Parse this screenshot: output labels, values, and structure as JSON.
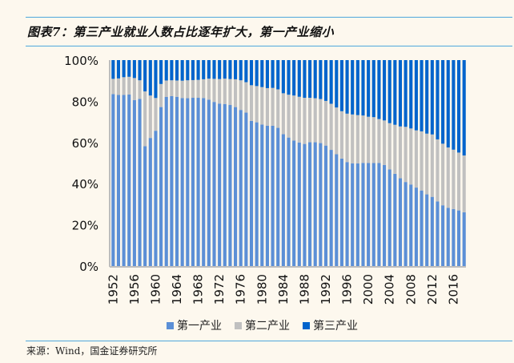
{
  "header": {
    "title": "图表7：第三产业就业人数占比逐年扩大，第一产业缩小"
  },
  "footer": {
    "source": "来源：Wind，国金证券研究所"
  },
  "colors": {
    "primary": "#5b8fd6",
    "secondary": "#c0c0c0",
    "tertiary": "#0064cc",
    "rule": "#4fa8dc",
    "background": "#fdf8ee"
  },
  "chart_data": {
    "type": "bar",
    "stacked": true,
    "percent": true,
    "title": "图表7：第三产业就业人数占比逐年扩大，第一产业缩小",
    "xlabel": "",
    "ylabel": "",
    "ylim": [
      0,
      100
    ],
    "yticks": [
      "0%",
      "20%",
      "40%",
      "60%",
      "80%",
      "100%"
    ],
    "xtick_labels": [
      "1952",
      "1956",
      "1960",
      "1964",
      "1968",
      "1972",
      "1976",
      "1980",
      "1984",
      "1988",
      "1992",
      "1996",
      "2000",
      "2004",
      "2008",
      "2012",
      "2016"
    ],
    "legend": {
      "position": "bottom",
      "entries": [
        "第一产业",
        "第二产业",
        "第三产业"
      ]
    },
    "grid": false,
    "categories": [
      "1952",
      "1953",
      "1954",
      "1955",
      "1956",
      "1957",
      "1958",
      "1959",
      "1960",
      "1961",
      "1962",
      "1963",
      "1964",
      "1965",
      "1966",
      "1967",
      "1968",
      "1969",
      "1970",
      "1971",
      "1972",
      "1973",
      "1974",
      "1975",
      "1976",
      "1977",
      "1978",
      "1979",
      "1980",
      "1981",
      "1982",
      "1983",
      "1984",
      "1985",
      "1986",
      "1987",
      "1988",
      "1989",
      "1990",
      "1991",
      "1992",
      "1993",
      "1994",
      "1995",
      "1996",
      "1997",
      "1998",
      "1999",
      "2000",
      "2001",
      "2002",
      "2003",
      "2004",
      "2005",
      "2006",
      "2007",
      "2008",
      "2009",
      "2010",
      "2011",
      "2012",
      "2013",
      "2014",
      "2015",
      "2016",
      "2017",
      "2018"
    ],
    "series": [
      {
        "name": "第一产业",
        "values": [
          83.5,
          83.1,
          83.1,
          83.3,
          80.6,
          81.2,
          58.2,
          62.2,
          65.7,
          77.2,
          82.1,
          82.5,
          82.2,
          81.6,
          81.5,
          81.7,
          81.7,
          81.6,
          80.8,
          79.7,
          78.9,
          78.7,
          78.2,
          77.2,
          75.8,
          74.5,
          70.5,
          69.8,
          68.7,
          68.1,
          68.1,
          67.1,
          64.0,
          62.4,
          60.9,
          60.0,
          59.3,
          60.1,
          60.1,
          59.7,
          58.5,
          56.4,
          54.3,
          52.2,
          50.5,
          49.9,
          49.8,
          50.1,
          50.0,
          50.0,
          50.0,
          49.1,
          46.9,
          44.8,
          42.6,
          40.8,
          39.6,
          38.1,
          36.7,
          34.8,
          33.6,
          31.4,
          29.5,
          28.3,
          27.7,
          27.0,
          26.1
        ]
      },
      {
        "name": "第二产业",
        "values": [
          7.4,
          8.0,
          8.6,
          8.6,
          10.7,
          9.0,
          26.6,
          20.6,
          15.9,
          11.2,
          8.0,
          7.7,
          7.9,
          8.4,
          8.7,
          8.6,
          8.7,
          9.1,
          10.2,
          11.2,
          11.9,
          12.3,
          12.6,
          13.5,
          14.4,
          14.8,
          17.3,
          17.6,
          18.2,
          18.3,
          18.4,
          18.7,
          19.9,
          20.8,
          21.9,
          22.2,
          22.4,
          21.6,
          21.4,
          21.4,
          21.7,
          22.4,
          22.7,
          23.0,
          23.5,
          23.7,
          23.5,
          23.0,
          22.5,
          22.3,
          21.4,
          21.6,
          22.5,
          23.8,
          25.2,
          26.8,
          27.2,
          27.8,
          28.7,
          29.5,
          30.3,
          30.1,
          29.9,
          29.3,
          28.8,
          28.1,
          27.6
        ]
      },
      {
        "name": "第三产业",
        "values": [
          9.1,
          8.9,
          8.3,
          8.1,
          8.7,
          9.8,
          15.2,
          17.2,
          18.4,
          11.6,
          9.9,
          9.8,
          9.9,
          10.0,
          9.8,
          9.7,
          9.6,
          9.3,
          9.0,
          9.1,
          9.2,
          9.0,
          9.2,
          9.3,
          9.8,
          10.7,
          12.2,
          12.6,
          13.1,
          13.6,
          13.5,
          14.2,
          16.1,
          16.8,
          17.2,
          17.8,
          18.3,
          18.3,
          18.5,
          18.9,
          19.8,
          21.2,
          23.0,
          24.8,
          26.0,
          26.4,
          26.7,
          26.9,
          27.5,
          27.7,
          28.6,
          29.3,
          30.6,
          31.4,
          32.2,
          32.4,
          33.2,
          34.1,
          34.6,
          35.7,
          36.1,
          38.5,
          40.6,
          42.4,
          43.5,
          44.9,
          46.3
        ]
      }
    ]
  }
}
